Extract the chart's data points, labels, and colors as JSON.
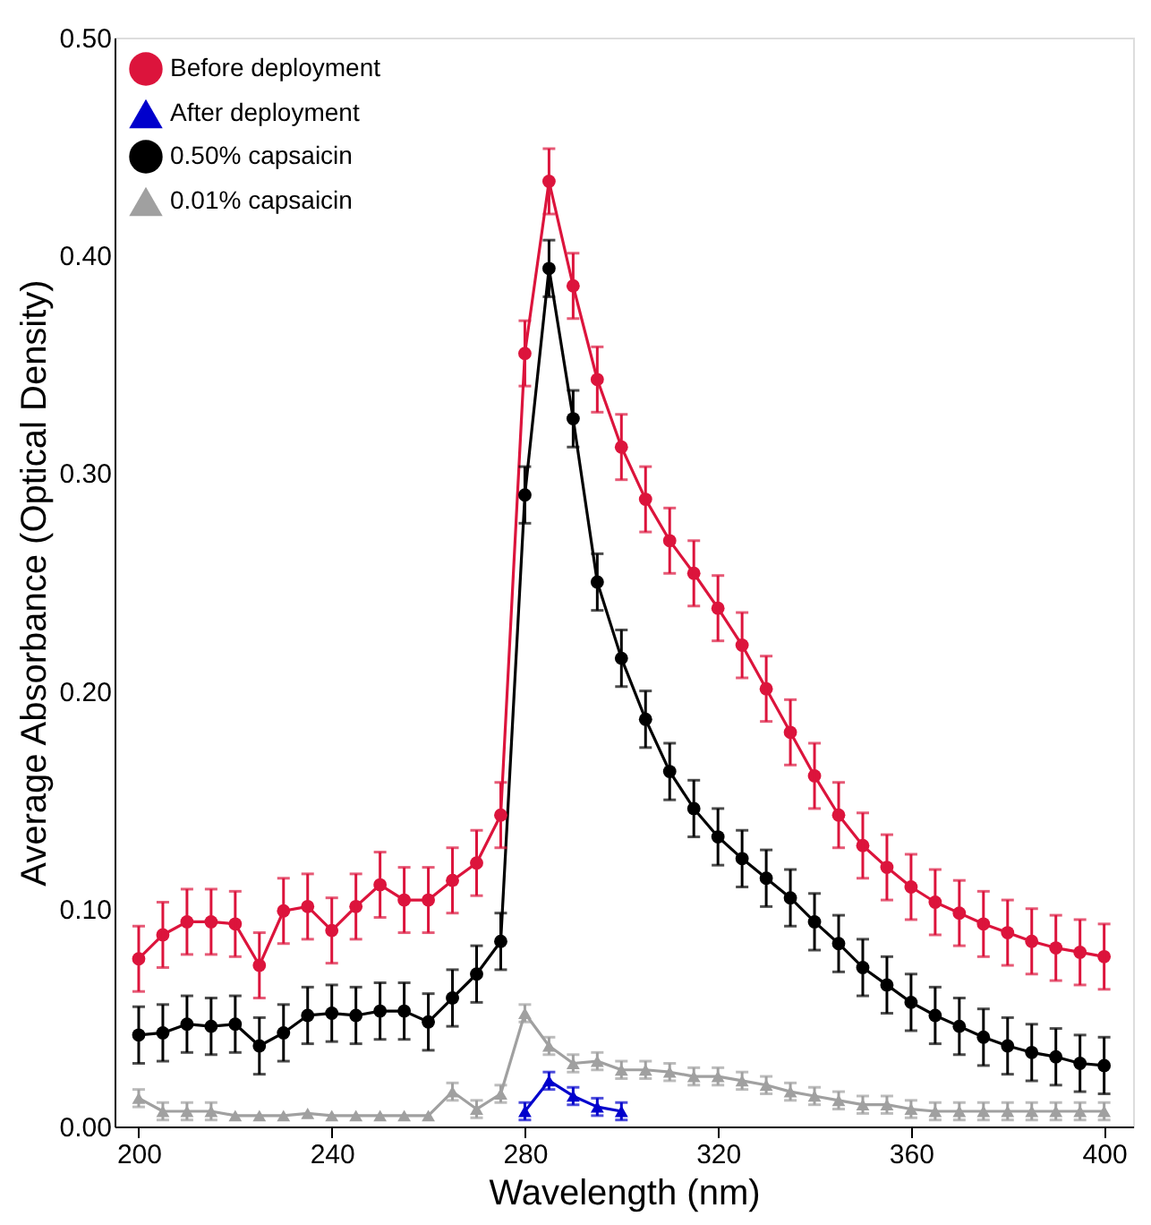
{
  "chart_data": {
    "type": "line",
    "xlabel": "Wavelength (nm)",
    "ylabel": "Average Absorbance (Optical Density)",
    "x": [
      200,
      205,
      210,
      215,
      220,
      225,
      230,
      235,
      240,
      245,
      250,
      255,
      260,
      265,
      270,
      275,
      280,
      285,
      290,
      295,
      300,
      305,
      310,
      315,
      320,
      325,
      330,
      335,
      340,
      345,
      350,
      355,
      360,
      365,
      370,
      375,
      380,
      385,
      390,
      395,
      400
    ],
    "xlim": [
      195,
      406
    ],
    "xticks": [
      200,
      240,
      280,
      320,
      360,
      400
    ],
    "ylim": [
      0,
      0.5
    ],
    "yticks": [
      {
        "value": 0,
        "label": "0.00"
      },
      {
        "value": 0.1,
        "label": "0.10"
      },
      {
        "value": 0.2,
        "label": "0.20"
      },
      {
        "value": 0.3,
        "label": "0.30"
      },
      {
        "value": 0.4,
        "label": "0.40"
      },
      {
        "value": 0.5,
        "label": "0.50"
      }
    ],
    "grid": false,
    "legend": "top left",
    "line_style": "solid",
    "series": [
      {
        "name": "Before deployment",
        "color": "#dc143c",
        "marker": "circle",
        "values": [
          0.077,
          0.088,
          0.094,
          0.094,
          0.093,
          0.074,
          0.099,
          0.101,
          0.09,
          0.101,
          0.111,
          0.104,
          0.104,
          0.113,
          0.121,
          0.143,
          0.355,
          0.434,
          0.386,
          0.343,
          0.312,
          0.288,
          0.269,
          0.254,
          0.238,
          0.221,
          0.201,
          0.181,
          0.161,
          0.143,
          0.129,
          0.119,
          0.11,
          0.103,
          0.098,
          0.093,
          0.089,
          0.085,
          0.082,
          0.08,
          0.078
        ],
        "errors": [
          0.015,
          0.015,
          0.015,
          0.015,
          0.015,
          0.015,
          0.015,
          0.015,
          0.015,
          0.015,
          0.015,
          0.015,
          0.015,
          0.015,
          0.015,
          0.015,
          0.015,
          0.015,
          0.015,
          0.015,
          0.015,
          0.015,
          0.015,
          0.015,
          0.015,
          0.015,
          0.015,
          0.015,
          0.015,
          0.015,
          0.015,
          0.015,
          0.015,
          0.015,
          0.015,
          0.015,
          0.015,
          0.015,
          0.015,
          0.015,
          0.015
        ]
      },
      {
        "name": "After deployment",
        "color": "#0000cc",
        "marker": "triangle",
        "x": [
          280,
          285,
          290,
          295,
          300
        ],
        "values": [
          0.007,
          0.021,
          0.014,
          0.009,
          0.007
        ],
        "errors": [
          0.004,
          0.004,
          0.004,
          0.004,
          0.004
        ]
      },
      {
        "name": "0.50% capsaicin",
        "color": "#000000",
        "marker": "circle",
        "values": [
          0.042,
          0.043,
          0.047,
          0.046,
          0.047,
          0.037,
          0.043,
          0.051,
          0.052,
          0.051,
          0.053,
          0.053,
          0.048,
          0.059,
          0.07,
          0.085,
          0.29,
          0.394,
          0.325,
          0.25,
          0.215,
          0.187,
          0.163,
          0.146,
          0.133,
          0.123,
          0.114,
          0.105,
          0.094,
          0.084,
          0.073,
          0.065,
          0.057,
          0.051,
          0.046,
          0.041,
          0.037,
          0.034,
          0.032,
          0.029,
          0.028
        ],
        "errors": [
          0.013,
          0.013,
          0.013,
          0.013,
          0.013,
          0.013,
          0.013,
          0.013,
          0.013,
          0.013,
          0.013,
          0.013,
          0.013,
          0.013,
          0.013,
          0.013,
          0.013,
          0.013,
          0.013,
          0.013,
          0.013,
          0.013,
          0.013,
          0.013,
          0.013,
          0.013,
          0.013,
          0.013,
          0.013,
          0.013,
          0.013,
          0.013,
          0.013,
          0.013,
          0.013,
          0.013,
          0.013,
          0.013,
          0.013,
          0.013,
          0.013
        ]
      },
      {
        "name": "0.01% capsaicin",
        "color": "#a0a0a0",
        "marker": "triangle",
        "values": [
          0.013,
          0.007,
          0.007,
          0.007,
          0.005,
          0.005,
          0.005,
          0.006,
          0.005,
          0.005,
          0.005,
          0.005,
          0.005,
          0.016,
          0.008,
          0.015,
          0.052,
          0.037,
          0.029,
          0.03,
          0.026,
          0.026,
          0.025,
          0.023,
          0.023,
          0.021,
          0.019,
          0.016,
          0.014,
          0.012,
          0.01,
          0.01,
          0.008,
          0.007,
          0.007,
          0.007,
          0.007,
          0.007,
          0.007,
          0.007,
          0.007
        ],
        "errors": [
          0.004,
          0.004,
          0.004,
          0.004,
          null,
          null,
          null,
          null,
          null,
          null,
          null,
          null,
          null,
          0.004,
          0.004,
          0.004,
          0.004,
          0.004,
          0.004,
          0.004,
          0.004,
          0.004,
          0.004,
          0.004,
          0.004,
          0.004,
          0.004,
          0.004,
          0.004,
          0.004,
          0.004,
          0.004,
          0.004,
          0.004,
          0.004,
          0.004,
          0.004,
          0.004,
          0.004,
          0.004,
          0.004
        ]
      }
    ]
  }
}
